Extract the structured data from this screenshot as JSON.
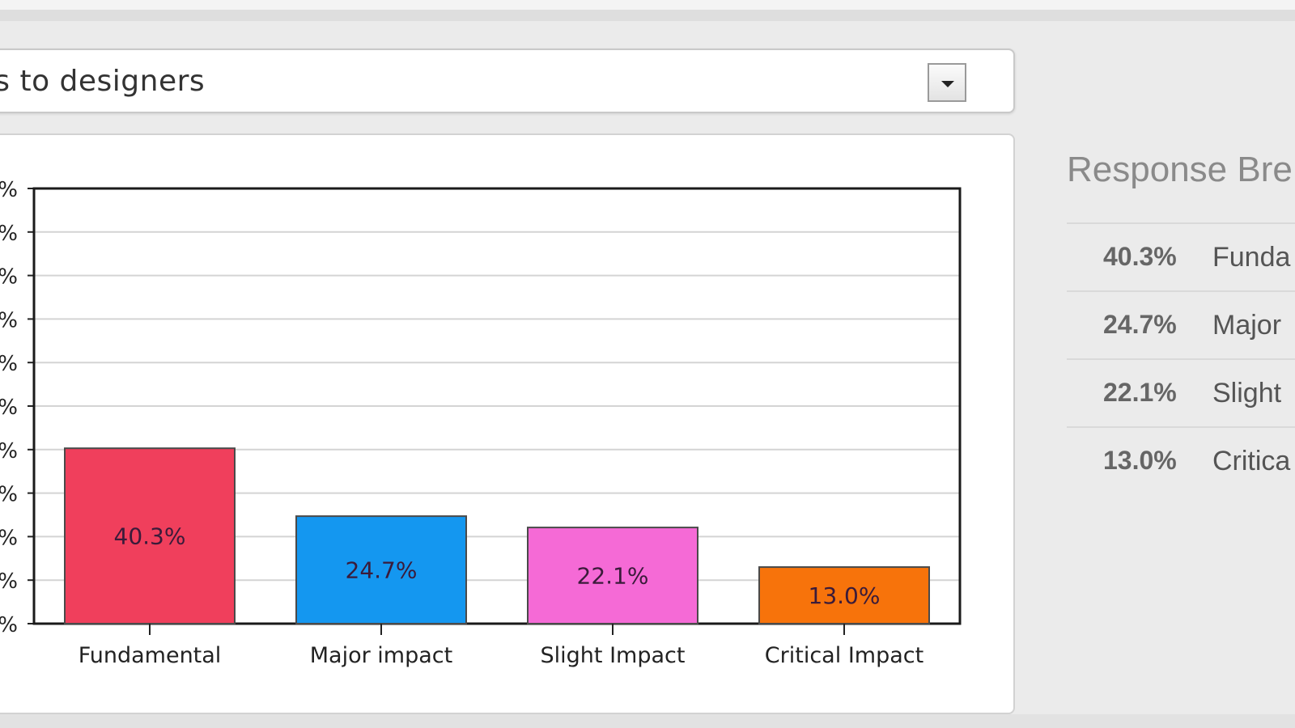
{
  "question_select": {
    "value": "ss to designers"
  },
  "chart_data": {
    "type": "bar",
    "categories": [
      "Fundamental",
      "Major impact",
      "Slight Impact",
      "Critical Impact"
    ],
    "values": [
      40.3,
      24.7,
      22.1,
      13.0
    ],
    "value_labels": [
      "40.3%",
      "24.7%",
      "22.1%",
      "13.0%"
    ],
    "colors": [
      "#f03f5c",
      "#1497f0",
      "#f56ad6",
      "#f7730b"
    ],
    "ylim": [
      0,
      100
    ],
    "y_ticks_visible": [
      "%",
      "%",
      "%",
      "%",
      "%",
      "%",
      "%",
      "%",
      "%",
      "%",
      "%"
    ],
    "grid": true,
    "title": "",
    "xlabel": "",
    "ylabel": ""
  },
  "breakdown": {
    "title": "Response Bre",
    "rows": [
      {
        "pct": "40.3%",
        "label": "Funda"
      },
      {
        "pct": "24.7%",
        "label": "Major"
      },
      {
        "pct": "22.1%",
        "label": "Slight"
      },
      {
        "pct": "13.0%",
        "label": "Critica"
      }
    ]
  }
}
